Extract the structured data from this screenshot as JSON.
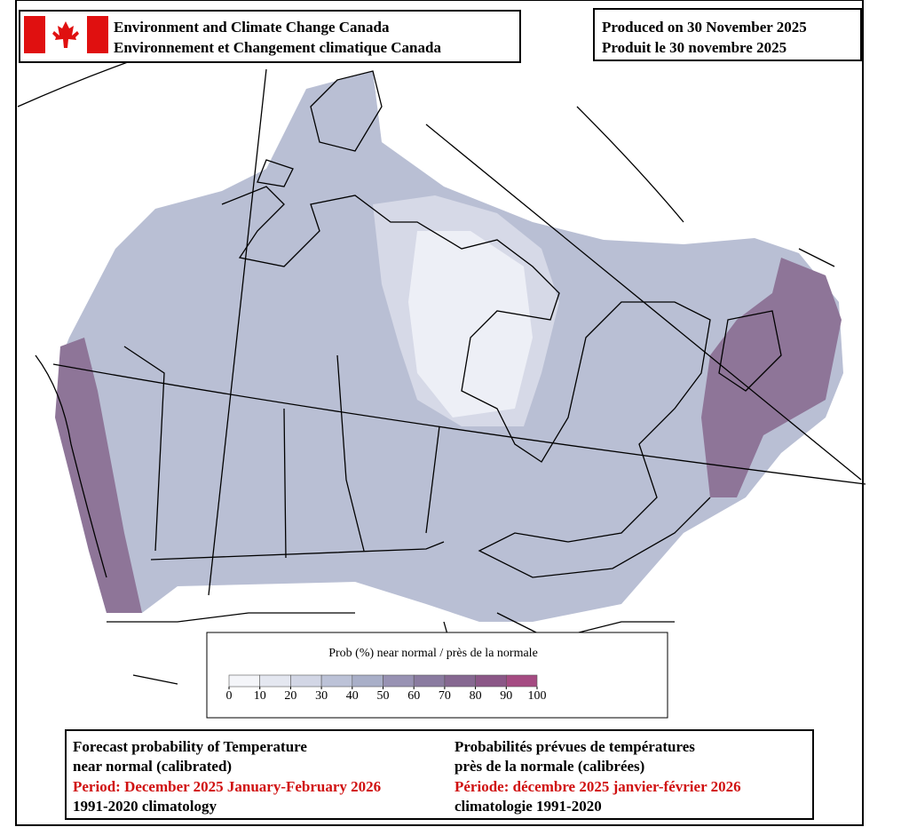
{
  "header": {
    "agency_en": "Environment and Climate Change Canada",
    "agency_fr": "Environnement et Changement climatique Canada",
    "produced_en": "Produced on 30 November 2025",
    "produced_fr": "Produit le 30 novembre 2025"
  },
  "legend": {
    "title": "Prob (%) near normal / près de la normale",
    "ticks": [
      0,
      10,
      20,
      30,
      40,
      50,
      60,
      70,
      80,
      90,
      100
    ],
    "colors": [
      "#f4f5f9",
      "#e4e7f0",
      "#d2d6e5",
      "#bcc2d7",
      "#a9afc8",
      "#9892b3",
      "#8a7ba0",
      "#866891",
      "#8b5787",
      "#a54b82"
    ]
  },
  "caption": {
    "en": [
      "Forecast probability of Temperature",
      "near normal (calibrated)",
      "Period: December 2025 January-February 2026",
      "1991-2020 climatology"
    ],
    "fr": [
      "Probabilités prévues de températures",
      "près de la normale (calibrées)",
      "Période: décembre 2025 janvier-février 2026",
      "climatologie 1991-2020"
    ]
  }
}
